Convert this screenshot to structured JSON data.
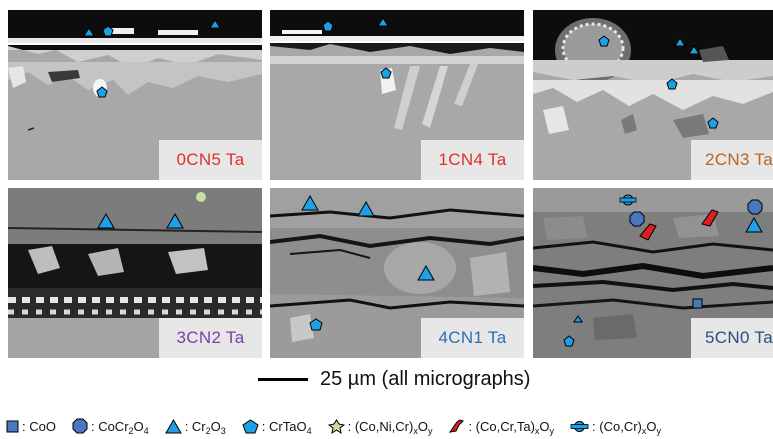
{
  "panels": [
    {
      "label": "0CN5 Ta",
      "label_color": "#e0302a"
    },
    {
      "label": "1CN4 Ta",
      "label_color": "#e0302a"
    },
    {
      "label": "2CN3 Ta",
      "label_color": "#b8651f"
    },
    {
      "label": "3CN2 Ta",
      "label_color": "#7a3fa8"
    },
    {
      "label": "4CN1 Ta",
      "label_color": "#2c6eb5"
    },
    {
      "label": "5CN0 Ta",
      "label_color": "#2a4f82"
    }
  ],
  "scale_bar": {
    "text": "25 µm (all micrographs)"
  },
  "legend": [
    {
      "icon": "square-marker",
      "label": "CoO",
      "color": "#4a78c0"
    },
    {
      "icon": "octagon-marker",
      "label": "CoCr2O4",
      "color": "#4a78c0"
    },
    {
      "icon": "triangle-marker",
      "label": "Cr2O3",
      "color": "#1ea0e6"
    },
    {
      "icon": "pentagon-marker",
      "label": "CrTaO4",
      "color": "#1ea0e6"
    },
    {
      "icon": "star-marker",
      "label": "(Co,Ni,Cr)xOy",
      "color": "#c8e0a0"
    },
    {
      "icon": "splat-marker",
      "label": "(Co,Cr,Ta)xOy",
      "color": "#e02020"
    },
    {
      "icon": "gear-marker",
      "label": "(Co,Cr)xOy",
      "color": "#1ea0e6"
    }
  ]
}
